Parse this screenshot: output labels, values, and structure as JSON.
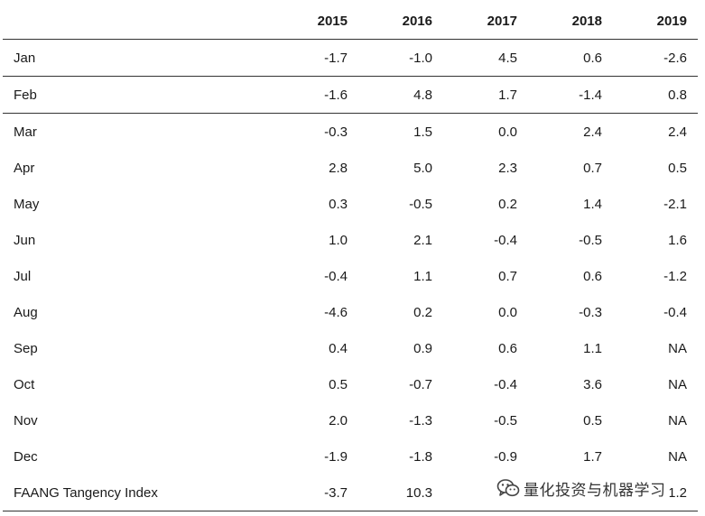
{
  "table": {
    "corner_label": "",
    "years": [
      "2015",
      "2016",
      "2017",
      "2018",
      "2019"
    ],
    "rows": [
      {
        "label": "Jan",
        "values": [
          "-1.7",
          "-1.0",
          "4.5",
          "0.6",
          "-2.6"
        ]
      },
      {
        "label": "Feb",
        "values": [
          "-1.6",
          "4.8",
          "1.7",
          "-1.4",
          "0.8"
        ]
      },
      {
        "label": "Mar",
        "values": [
          "-0.3",
          "1.5",
          "0.0",
          "2.4",
          "2.4"
        ]
      },
      {
        "label": "Apr",
        "values": [
          "2.8",
          "5.0",
          "2.3",
          "0.7",
          "0.5"
        ]
      },
      {
        "label": "May",
        "values": [
          "0.3",
          "-0.5",
          "0.2",
          "1.4",
          "-2.1"
        ]
      },
      {
        "label": "Jun",
        "values": [
          "1.0",
          "2.1",
          "-0.4",
          "-0.5",
          "1.6"
        ]
      },
      {
        "label": "Jul",
        "values": [
          "-0.4",
          "1.1",
          "0.7",
          "0.6",
          "-1.2"
        ]
      },
      {
        "label": "Aug",
        "values": [
          "-4.6",
          "0.2",
          "0.0",
          "-0.3",
          "-0.4"
        ]
      },
      {
        "label": "Sep",
        "values": [
          "0.4",
          "0.9",
          "0.6",
          "1.1",
          "NA"
        ]
      },
      {
        "label": "Oct",
        "values": [
          "0.5",
          "-0.7",
          "-0.4",
          "3.6",
          "NA"
        ]
      },
      {
        "label": "Nov",
        "values": [
          "2.0",
          "-1.3",
          "-0.5",
          "0.5",
          "NA"
        ]
      },
      {
        "label": "Dec",
        "values": [
          "-1.9",
          "-1.8",
          "-0.9",
          "1.7",
          "NA"
        ]
      },
      {
        "label": "FAANG Tangency Index",
        "values": [
          "-3.7",
          "10.3",
          "",
          "",
          "1.2"
        ]
      }
    ]
  },
  "watermark": {
    "text": "量化投资与机器学习",
    "icon": "wechat-logo-icon"
  }
}
